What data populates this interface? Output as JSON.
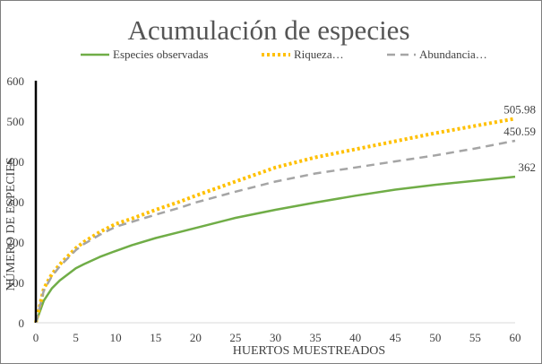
{
  "chart_data": {
    "type": "line",
    "title": "Acumulación de especies",
    "xlabel": "HUERTOS MUESTREADOS",
    "ylabel": "NÚMERO DE ESPECIES",
    "xlim": [
      0,
      60
    ],
    "ylim": [
      0,
      600
    ],
    "xticks": [
      "0",
      "5",
      "10",
      "15",
      "20",
      "25",
      "30",
      "35",
      "40",
      "45",
      "50",
      "55",
      "60"
    ],
    "yticks": [
      "0",
      "100",
      "200",
      "300",
      "400",
      "500",
      "600"
    ],
    "grid": false,
    "legend": "top",
    "series": [
      {
        "name": "Especies observadas",
        "color": "#70ad47",
        "style": "solid",
        "end_label": "362",
        "x": [
          0,
          1,
          2,
          3,
          4,
          5,
          6,
          8,
          10,
          12,
          15,
          18,
          20,
          25,
          30,
          35,
          40,
          45,
          50,
          55,
          60
        ],
        "y": [
          0,
          55,
          85,
          105,
          120,
          135,
          145,
          163,
          178,
          192,
          210,
          225,
          235,
          260,
          280,
          298,
          315,
          330,
          342,
          352,
          362
        ]
      },
      {
        "name": "Riqueza…",
        "color": "#ffc000",
        "style": "dotted",
        "end_label": "505.98",
        "x": [
          0,
          1,
          2,
          3,
          4,
          5,
          6,
          8,
          10,
          12,
          15,
          18,
          20,
          25,
          30,
          35,
          40,
          45,
          50,
          55,
          60
        ],
        "y": [
          0,
          85,
          120,
          145,
          165,
          185,
          200,
          225,
          245,
          258,
          280,
          300,
          315,
          350,
          385,
          410,
          430,
          450,
          470,
          488,
          506
        ]
      },
      {
        "name": "Abundancia…",
        "color": "#a5a5a5",
        "style": "dashed",
        "end_label": "450.59",
        "x": [
          0,
          1,
          2,
          3,
          4,
          5,
          6,
          8,
          10,
          12,
          15,
          18,
          20,
          25,
          30,
          35,
          40,
          45,
          50,
          55,
          60
        ],
        "y": [
          0,
          80,
          115,
          140,
          160,
          180,
          195,
          218,
          238,
          250,
          268,
          285,
          298,
          325,
          350,
          370,
          385,
          400,
          415,
          432,
          451
        ]
      }
    ]
  }
}
